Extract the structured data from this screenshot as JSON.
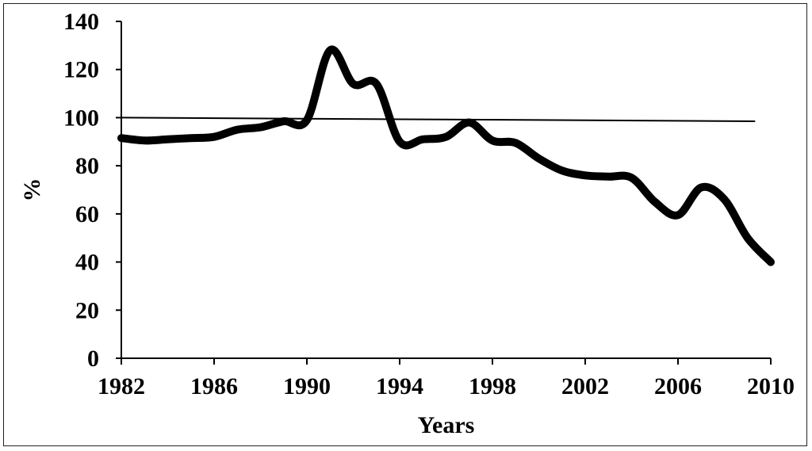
{
  "chart_data": {
    "type": "line",
    "xlabel": "Years",
    "ylabel": "%",
    "xlim": [
      1982,
      2010
    ],
    "ylim": [
      0,
      140
    ],
    "x_ticks": [
      "1982",
      "1986",
      "1990",
      "1994",
      "1998",
      "2002",
      "2006",
      "2010"
    ],
    "y_ticks": [
      "0",
      "20",
      "40",
      "60",
      "80",
      "100",
      "120",
      "140"
    ],
    "grid": false,
    "legend": "none",
    "series": [
      {
        "style": "thick",
        "color": "#000000",
        "x": [
          1982,
          1983,
          1984,
          1985,
          1986,
          1987,
          1988,
          1989,
          1990,
          1991,
          1992,
          1993,
          1994,
          1995,
          1996,
          1997,
          1998,
          1999,
          2000,
          2001,
          2002,
          2003,
          2004,
          2005,
          2006,
          2007,
          2008,
          2009,
          2010
        ],
        "y": [
          91.5,
          90.5,
          91,
          91.5,
          92,
          95,
          96,
          98.5,
          99,
          128,
          114,
          114,
          90,
          91,
          92,
          98,
          90.5,
          89.5,
          83,
          78,
          76,
          75.5,
          75,
          65,
          59.5,
          71,
          66,
          50,
          40
        ]
      },
      {
        "style": "thin",
        "color": "#000000",
        "x": [
          1982,
          2009.3
        ],
        "y": [
          100,
          98.5
        ]
      }
    ]
  }
}
